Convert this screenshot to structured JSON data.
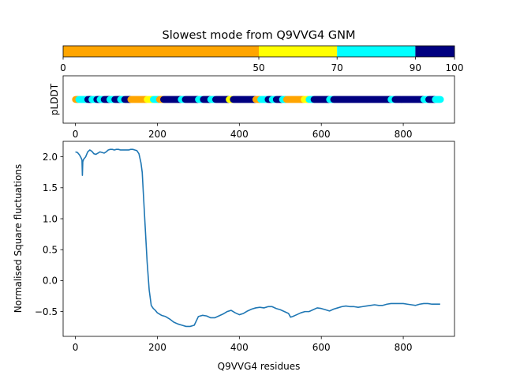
{
  "chart_data": [
    {
      "type": "colorbar",
      "title": "Slowest mode from Q9VVG4 GNM",
      "ticks": [
        0,
        50,
        70,
        90,
        100
      ],
      "tick_labels": [
        "0",
        "50",
        "70",
        "90",
        "100"
      ],
      "range": [
        0,
        100
      ],
      "bands": [
        {
          "from": 0,
          "to": 50,
          "color": "#FFA500"
        },
        {
          "from": 50,
          "to": 70,
          "color": "#FFFF00"
        },
        {
          "from": 70,
          "to": 90,
          "color": "#00FFFF"
        },
        {
          "from": 90,
          "to": 100,
          "color": "#000080"
        }
      ]
    },
    {
      "type": "scatter",
      "ylabel": "pLDDT",
      "xlim": [
        -30,
        925
      ],
      "xticks": [
        0,
        200,
        400,
        600,
        800
      ],
      "xtick_labels": [
        "0",
        "200",
        "400",
        "600",
        "800"
      ],
      "segments": [
        {
          "from": 0,
          "to": 8,
          "color": "#FFA500"
        },
        {
          "from": 8,
          "to": 30,
          "color": "#00FFFF"
        },
        {
          "from": 30,
          "to": 40,
          "color": "#000080"
        },
        {
          "from": 40,
          "to": 52,
          "color": "#00FFFF"
        },
        {
          "from": 52,
          "to": 60,
          "color": "#000080"
        },
        {
          "from": 60,
          "to": 70,
          "color": "#00FFFF"
        },
        {
          "from": 70,
          "to": 84,
          "color": "#000080"
        },
        {
          "from": 84,
          "to": 96,
          "color": "#00FFFF"
        },
        {
          "from": 96,
          "to": 110,
          "color": "#000080"
        },
        {
          "from": 110,
          "to": 120,
          "color": "#00FFFF"
        },
        {
          "from": 120,
          "to": 135,
          "color": "#000080"
        },
        {
          "from": 135,
          "to": 175,
          "color": "#FFA500"
        },
        {
          "from": 175,
          "to": 190,
          "color": "#FFFF00"
        },
        {
          "from": 190,
          "to": 205,
          "color": "#00FFFF"
        },
        {
          "from": 205,
          "to": 215,
          "color": "#FFA500"
        },
        {
          "from": 215,
          "to": 258,
          "color": "#000080"
        },
        {
          "from": 258,
          "to": 268,
          "color": "#00FFFF"
        },
        {
          "from": 268,
          "to": 300,
          "color": "#000080"
        },
        {
          "from": 300,
          "to": 312,
          "color": "#00FFFF"
        },
        {
          "from": 312,
          "to": 330,
          "color": "#000080"
        },
        {
          "from": 330,
          "to": 342,
          "color": "#00FFFF"
        },
        {
          "from": 342,
          "to": 375,
          "color": "#000080"
        },
        {
          "from": 375,
          "to": 385,
          "color": "#FFFF00"
        },
        {
          "from": 385,
          "to": 440,
          "color": "#000080"
        },
        {
          "from": 440,
          "to": 452,
          "color": "#FFA500"
        },
        {
          "from": 452,
          "to": 470,
          "color": "#00FFFF"
        },
        {
          "from": 470,
          "to": 480,
          "color": "#000080"
        },
        {
          "from": 480,
          "to": 490,
          "color": "#00FFFF"
        },
        {
          "from": 490,
          "to": 505,
          "color": "#000080"
        },
        {
          "from": 505,
          "to": 515,
          "color": "#00FFFF"
        },
        {
          "from": 515,
          "to": 558,
          "color": "#FFA500"
        },
        {
          "from": 558,
          "to": 570,
          "color": "#FFFF00"
        },
        {
          "from": 570,
          "to": 582,
          "color": "#00FFFF"
        },
        {
          "from": 582,
          "to": 620,
          "color": "#000080"
        },
        {
          "from": 620,
          "to": 630,
          "color": "#00FFFF"
        },
        {
          "from": 630,
          "to": 770,
          "color": "#000080"
        },
        {
          "from": 770,
          "to": 780,
          "color": "#00FFFF"
        },
        {
          "from": 780,
          "to": 850,
          "color": "#000080"
        },
        {
          "from": 850,
          "to": 862,
          "color": "#00FFFF"
        },
        {
          "from": 862,
          "to": 878,
          "color": "#000080"
        },
        {
          "from": 878,
          "to": 892,
          "color": "#00FFFF"
        }
      ]
    },
    {
      "type": "line",
      "xlabel": "Q9VVG4 residues",
      "ylabel": "Normalised Square fluctuations",
      "xlim": [
        -30,
        925
      ],
      "ylim": [
        -0.9,
        2.25
      ],
      "xticks": [
        0,
        200,
        400,
        600,
        800
      ],
      "xtick_labels": [
        "0",
        "200",
        "400",
        "600",
        "800"
      ],
      "yticks": [
        -0.5,
        0.0,
        0.5,
        1.0,
        1.5,
        2.0
      ],
      "ytick_labels": [
        "−0.5",
        "0.0",
        "0.5",
        "1.0",
        "1.5",
        "2.0"
      ],
      "color": "#1f77b4",
      "series": [
        {
          "x": [
            0,
            5,
            10,
            14,
            16,
            17,
            18,
            20,
            25,
            30,
            35,
            40,
            45,
            50,
            55,
            60,
            65,
            70,
            75,
            80,
            85,
            90,
            95,
            100,
            105,
            110,
            115,
            120,
            125,
            130,
            135,
            140,
            145,
            150,
            155,
            160,
            163,
            165,
            170,
            175,
            180,
            185,
            190,
            195,
            200,
            210,
            220,
            230,
            240,
            250,
            260,
            270,
            280,
            290,
            300,
            310,
            320,
            330,
            340,
            350,
            360,
            370,
            380,
            390,
            400,
            410,
            420,
            430,
            440,
            450,
            460,
            470,
            480,
            490,
            500,
            510,
            520,
            525,
            530,
            540,
            550,
            560,
            570,
            580,
            590,
            600,
            610,
            620,
            630,
            640,
            650,
            660,
            670,
            680,
            690,
            700,
            710,
            720,
            730,
            740,
            750,
            760,
            770,
            780,
            790,
            800,
            810,
            820,
            830,
            840,
            850,
            860,
            870,
            880,
            890
          ],
          "y": [
            2.08,
            2.07,
            2.03,
            1.98,
            1.95,
            1.7,
            1.92,
            1.96,
            2.0,
            2.08,
            2.11,
            2.09,
            2.05,
            2.04,
            2.06,
            2.08,
            2.07,
            2.06,
            2.08,
            2.11,
            2.12,
            2.12,
            2.11,
            2.12,
            2.12,
            2.11,
            2.11,
            2.11,
            2.11,
            2.11,
            2.12,
            2.12,
            2.11,
            2.1,
            2.05,
            1.9,
            1.75,
            1.5,
            0.9,
            0.3,
            -0.15,
            -0.4,
            -0.45,
            -0.48,
            -0.52,
            -0.56,
            -0.58,
            -0.62,
            -0.67,
            -0.7,
            -0.72,
            -0.74,
            -0.74,
            -0.72,
            -0.58,
            -0.56,
            -0.57,
            -0.6,
            -0.6,
            -0.57,
            -0.54,
            -0.5,
            -0.48,
            -0.52,
            -0.55,
            -0.53,
            -0.49,
            -0.46,
            -0.44,
            -0.43,
            -0.44,
            -0.42,
            -0.42,
            -0.45,
            -0.47,
            -0.5,
            -0.53,
            -0.59,
            -0.58,
            -0.55,
            -0.52,
            -0.5,
            -0.5,
            -0.47,
            -0.44,
            -0.45,
            -0.47,
            -0.49,
            -0.46,
            -0.44,
            -0.42,
            -0.41,
            -0.42,
            -0.42,
            -0.43,
            -0.42,
            -0.41,
            -0.4,
            -0.39,
            -0.4,
            -0.4,
            -0.38,
            -0.37,
            -0.37,
            -0.37,
            -0.37,
            -0.38,
            -0.39,
            -0.4,
            -0.38,
            -0.37,
            -0.37,
            -0.38,
            -0.38,
            -0.38
          ]
        }
      ]
    }
  ]
}
